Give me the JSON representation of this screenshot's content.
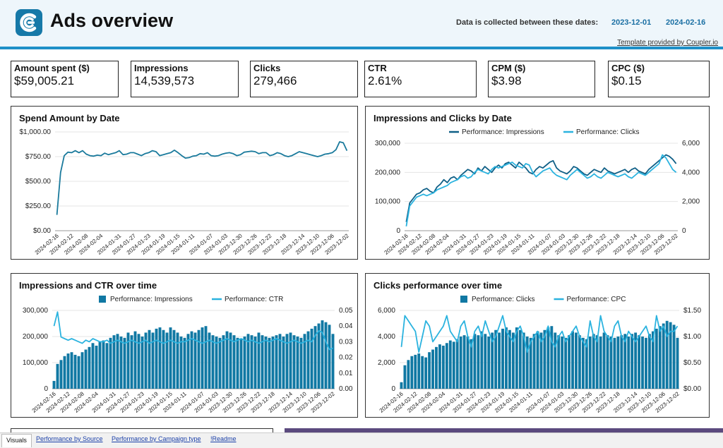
{
  "header": {
    "title": "Ads overview",
    "dates_label": "Data is collected between these dates:",
    "start_date": "2023-12-01",
    "end_date": "2024-02-16",
    "template_link": "Template provided by Coupler.io",
    "logo_icon": "coupler-logo-icon",
    "accent_color": "#1e90c8"
  },
  "kpis": [
    {
      "label": "Amount spent ($)",
      "value": "$59,005.21"
    },
    {
      "label": "Impressions",
      "value": "14,539,573"
    },
    {
      "label": "Clicks",
      "value": "279,466"
    },
    {
      "label": "CTR",
      "value": "2.61%"
    },
    {
      "label": "CPM ($)",
      "value": "$3.98"
    },
    {
      "label": "CPC ($)",
      "value": "$0.15"
    }
  ],
  "x_tick_labels": [
    "2024-02-16",
    "2024-02-12",
    "2024-02-08",
    "2024-02-04",
    "2024-01-31",
    "2024-01-27",
    "2024-01-23",
    "2024-01-19",
    "2024-01-15",
    "2024-01-11",
    "2024-01-07",
    "2024-01-03",
    "2023-12-30",
    "2023-12-26",
    "2023-12-22",
    "2023-12-18",
    "2023-12-14",
    "2023-12-10",
    "2023-12-06",
    "2023-12-02"
  ],
  "x_tick_labels_b": [
    "2024-02-16",
    "2024-02-12",
    "2024-02-08",
    "2024-02-04",
    "2024-01-31",
    "2024-01-27",
    "2024-01-23",
    "2024-01-19",
    "2024-01-15",
    "2024-01-11",
    "2024-01-07",
    "2024-01-03",
    "2023-12-30",
    "2023-12-26",
    "2023-12-22",
    "2023-12-18",
    "2023-12-14",
    "2023-12-10",
    "2023-12-06",
    "2023-12-02"
  ],
  "chart_data": [
    {
      "type": "line",
      "title": "Spend Amount by Date",
      "ylim": [
        0,
        1000
      ],
      "yticks": [
        "$0.00",
        "$250.00",
        "$500.00",
        "$750.00",
        "$1,000.00"
      ],
      "series": [
        {
          "name": "Spend",
          "color": "#1a7a9c",
          "values": [
            160,
            590,
            760,
            795,
            790,
            810,
            790,
            810,
            775,
            760,
            755,
            765,
            760,
            785,
            770,
            780,
            790,
            810,
            770,
            775,
            790,
            790,
            775,
            760,
            780,
            790,
            810,
            800,
            760,
            770,
            780,
            790,
            815,
            790,
            760,
            735,
            740,
            755,
            760,
            780,
            775,
            790,
            760,
            755,
            760,
            775,
            785,
            790,
            780,
            760,
            770,
            795,
            800,
            805,
            800,
            780,
            790,
            790,
            760,
            770,
            790,
            780,
            760,
            750,
            760,
            780,
            800,
            790,
            780,
            770,
            760,
            750,
            760,
            775,
            780,
            790,
            820,
            900,
            890,
            810
          ]
        }
      ]
    },
    {
      "type": "line",
      "title": "Impressions and Clicks by Date",
      "legend_position": "top",
      "ylim_left": [
        0,
        300000
      ],
      "ylim_right": [
        0,
        6000
      ],
      "yticks_left": [
        "0",
        "100,000",
        "200,000",
        "300,000"
      ],
      "yticks_right": [
        "0",
        "2,000",
        "4,000",
        "6,000"
      ],
      "series": [
        {
          "name": "Performance: Impressions",
          "axis": "left",
          "color": "#0f5f86",
          "values": [
            30000,
            95000,
            110000,
            125000,
            130000,
            140000,
            145000,
            135000,
            130000,
            150000,
            160000,
            175000,
            165000,
            180000,
            185000,
            175000,
            190000,
            200000,
            210000,
            205000,
            195000,
            215000,
            205000,
            220000,
            210000,
            200000,
            215000,
            225000,
            215000,
            230000,
            235000,
            225000,
            215000,
            235000,
            225000,
            215000,
            200000,
            195000,
            210000,
            220000,
            215000,
            225000,
            235000,
            240000,
            215000,
            205000,
            200000,
            195000,
            205000,
            220000,
            215000,
            205000,
            195000,
            190000,
            200000,
            210000,
            205000,
            200000,
            215000,
            205000,
            200000,
            195000,
            200000,
            205000,
            210000,
            200000,
            210000,
            215000,
            205000,
            200000,
            195000,
            210000,
            220000,
            230000,
            240000,
            250000,
            260000,
            255000,
            245000,
            230000
          ]
        },
        {
          "name": "Performance: Clicks",
          "axis": "left",
          "color": "#2bb3df",
          "values": [
            15000,
            85000,
            100000,
            115000,
            120000,
            125000,
            120000,
            125000,
            130000,
            140000,
            145000,
            150000,
            155000,
            165000,
            170000,
            175000,
            185000,
            190000,
            180000,
            185000,
            200000,
            210000,
            205000,
            200000,
            195000,
            210000,
            220000,
            215000,
            220000,
            225000,
            230000,
            235000,
            225000,
            220000,
            215000,
            230000,
            225000,
            200000,
            185000,
            195000,
            205000,
            210000,
            215000,
            200000,
            190000,
            185000,
            180000,
            175000,
            190000,
            200000,
            210000,
            200000,
            190000,
            180000,
            185000,
            195000,
            185000,
            180000,
            190000,
            200000,
            195000,
            190000,
            185000,
            190000,
            195000,
            185000,
            180000,
            190000,
            200000,
            195000,
            190000,
            200000,
            210000,
            220000,
            230000,
            260000,
            250000,
            230000,
            210000,
            200000
          ]
        }
      ]
    },
    {
      "type": "bar",
      "title": "Impressions and CTR over time",
      "legend_position": "top",
      "ylim_left": [
        0,
        300000
      ],
      "ylim_right": [
        0,
        0.05
      ],
      "yticks_left": [
        "0",
        "100,000",
        "200,000",
        "300,000"
      ],
      "yticks_right": [
        "0.00",
        "0.01",
        "0.02",
        "0.03",
        "0.04",
        "0.05"
      ],
      "series": [
        {
          "name": "Performance: Impressions",
          "kind": "bar",
          "axis": "left",
          "color": "#1078a3",
          "values": [
            30000,
            95000,
            110000,
            125000,
            135000,
            140000,
            130000,
            125000,
            140000,
            150000,
            160000,
            175000,
            165000,
            180000,
            185000,
            175000,
            195000,
            205000,
            210000,
            200000,
            195000,
            215000,
            205000,
            220000,
            210000,
            200000,
            215000,
            225000,
            215000,
            230000,
            235000,
            225000,
            215000,
            235000,
            225000,
            215000,
            200000,
            195000,
            210000,
            220000,
            215000,
            225000,
            235000,
            240000,
            215000,
            205000,
            200000,
            195000,
            205000,
            220000,
            215000,
            205000,
            195000,
            190000,
            200000,
            210000,
            205000,
            200000,
            215000,
            205000,
            200000,
            195000,
            200000,
            205000,
            210000,
            200000,
            210000,
            215000,
            205000,
            200000,
            195000,
            210000,
            220000,
            230000,
            240000,
            250000,
            262000,
            255000,
            245000,
            210000
          ]
        },
        {
          "name": "Performance: CTR",
          "kind": "line",
          "axis": "right",
          "color": "#2bb3df",
          "values": [
            0.04,
            0.049,
            0.033,
            0.032,
            0.031,
            0.032,
            0.031,
            0.03,
            0.029,
            0.031,
            0.03,
            0.032,
            0.031,
            0.03,
            0.03,
            0.031,
            0.029,
            0.03,
            0.031,
            0.03,
            0.029,
            0.03,
            0.031,
            0.03,
            0.029,
            0.03,
            0.031,
            0.029,
            0.03,
            0.031,
            0.03,
            0.029,
            0.03,
            0.031,
            0.03,
            0.029,
            0.03,
            0.03,
            0.031,
            0.032,
            0.031,
            0.03,
            0.029,
            0.03,
            0.031,
            0.03,
            0.029,
            0.03,
            0.031,
            0.032,
            0.031,
            0.03,
            0.031,
            0.032,
            0.031,
            0.03,
            0.031,
            0.03,
            0.029,
            0.03,
            0.031,
            0.03,
            0.031,
            0.032,
            0.031,
            0.03,
            0.029,
            0.03,
            0.031,
            0.03,
            0.029,
            0.03,
            0.031,
            0.03,
            0.034,
            0.037,
            0.036,
            0.03,
            0.025,
            0.026
          ]
        }
      ]
    },
    {
      "type": "bar",
      "title": "Clicks performance over time",
      "legend_position": "top",
      "ylim_left": [
        0,
        6000
      ],
      "ylim_right": [
        0,
        1.5
      ],
      "yticks_left": [
        "0",
        "2,000",
        "4,000",
        "6,000"
      ],
      "yticks_right": [
        "$0.00",
        "$0.50",
        "$1.00",
        "$1.50"
      ],
      "series": [
        {
          "name": "Performance: Clicks",
          "kind": "bar",
          "axis": "left",
          "color": "#1078a3",
          "values": [
            500,
            1800,
            2200,
            2500,
            2600,
            2700,
            2500,
            2400,
            2800,
            3000,
            3200,
            3400,
            3300,
            3500,
            3700,
            3600,
            3800,
            4000,
            4100,
            4000,
            3800,
            4200,
            4100,
            4400,
            4200,
            4000,
            4300,
            4500,
            4300,
            4600,
            4700,
            4500,
            4300,
            4700,
            4500,
            4300,
            4000,
            3900,
            4200,
            4400,
            4300,
            4500,
            4700,
            4800,
            4300,
            4100,
            4000,
            3900,
            4100,
            4400,
            4300,
            4100,
            3900,
            3800,
            4000,
            4200,
            4100,
            4000,
            4300,
            4100,
            4000,
            3900,
            4000,
            4100,
            4200,
            4000,
            4200,
            4300,
            4100,
            4000,
            3900,
            4200,
            4400,
            4600,
            4800,
            5000,
            5200,
            5100,
            4900,
            3900
          ]
        },
        {
          "name": "Performance: CPC",
          "kind": "line",
          "axis": "right",
          "color": "#2bb3df",
          "values": [
            0.8,
            1.4,
            1.3,
            1.2,
            1.1,
            0.7,
            1.0,
            1.3,
            1.2,
            0.9,
            1.0,
            1.1,
            1.2,
            1.4,
            1.1,
            1.0,
            0.9,
            1.2,
            1.3,
            1.0,
            0.8,
            1.1,
            1.2,
            1.0,
            1.3,
            1.1,
            0.9,
            1.0,
            1.2,
            1.4,
            1.1,
            1.0,
            0.9,
            1.1,
            1.2,
            1.0,
            0.7,
            0.9,
            1.0,
            1.1,
            0.9,
            1.0,
            1.2,
            0.9,
            0.8,
            1.0,
            1.1,
            0.9,
            1.0,
            1.1,
            1.2,
            1.0,
            0.9,
            0.8,
            1.3,
            1.0,
            0.9,
            1.4,
            1.1,
            1.0,
            0.9,
            1.2,
            1.3,
            1.0,
            0.9,
            1.1,
            1.0,
            0.9,
            1.0,
            1.1,
            1.2,
            1.0,
            0.9,
            1.4,
            1.1,
            1.2,
            1.0,
            1.1,
            1.1,
            1.2
          ]
        }
      ]
    }
  ],
  "tabs": [
    {
      "label": "Visuals",
      "active": true
    },
    {
      "label": "Performance by Source",
      "active": false
    },
    {
      "label": "Performance by Campaign type",
      "active": false
    },
    {
      "label": "!Readme",
      "active": false
    }
  ]
}
